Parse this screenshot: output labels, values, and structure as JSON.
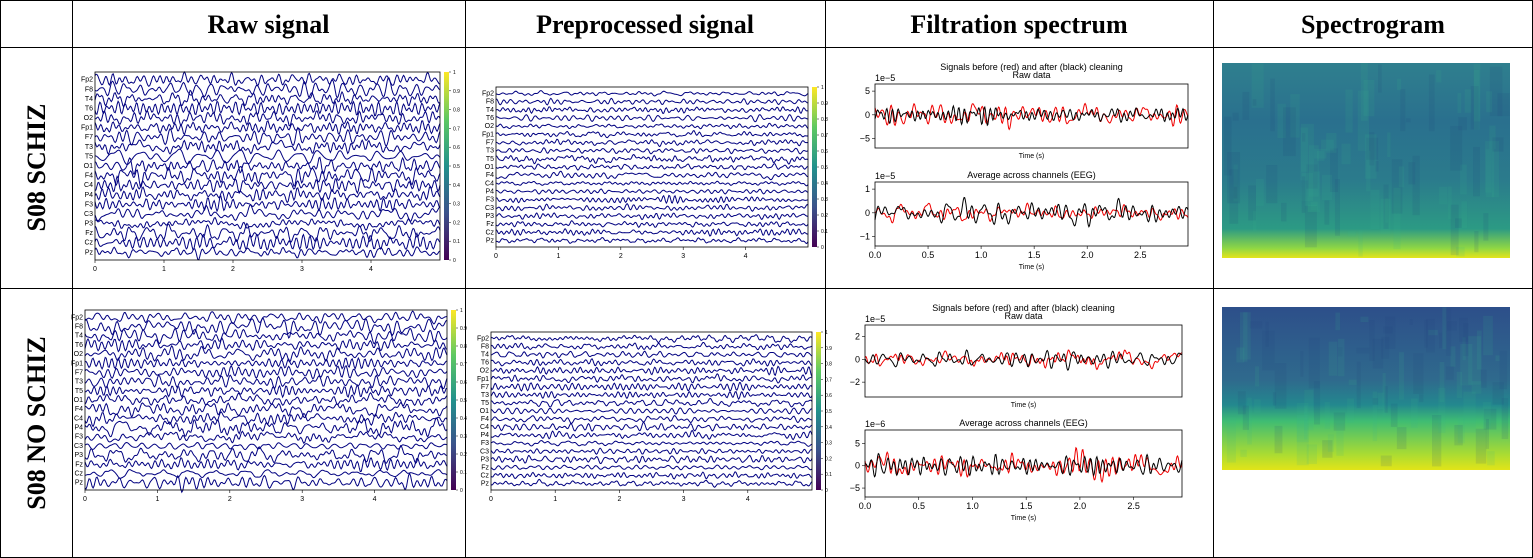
{
  "table": {
    "header": [
      "Raw signal",
      "Preprocessed signal",
      "Filtration spectrum",
      "Spectrogram"
    ],
    "rows": [
      {
        "label": "S08 SCHIZ"
      },
      {
        "label": "S08 NO SCHIZ"
      }
    ]
  },
  "eeg": {
    "channels": [
      "Fp2",
      "F8",
      "T4",
      "T6",
      "O2",
      "Fp1",
      "F7",
      "T3",
      "T5",
      "O1",
      "F4",
      "C4",
      "P4",
      "F3",
      "C3",
      "P3",
      "Fz",
      "Cz",
      "Pz"
    ],
    "xlim": [
      0,
      5
    ],
    "xticks": [
      0,
      1,
      2,
      3,
      4
    ],
    "colorbar_ticks": [
      0,
      0.1,
      0.2,
      0.3,
      0.4,
      0.5,
      0.6,
      0.7,
      0.8,
      0.9,
      1
    ]
  },
  "filtration": {
    "title": "Signals before (red) and after (black) cleaning",
    "raw_title": "Raw data",
    "avg_title": "Average across channels (EEG)",
    "xlabel": "Time (s)",
    "xlim": [
      0,
      2.95
    ],
    "xticks": [
      {
        "value": 0,
        "label": "0.0"
      },
      {
        "value": 0.5,
        "label": "0.5"
      },
      {
        "value": 1,
        "label": "1.0"
      },
      {
        "value": 1.5,
        "label": "1.5"
      },
      {
        "value": 2,
        "label": "2.0"
      },
      {
        "value": 2.5,
        "label": "2.5"
      }
    ],
    "rows": [
      {
        "raw_scale": "1e−5",
        "raw_ylim": [
          -7,
          6.5
        ],
        "raw_yticks": [
          5,
          0,
          {
            "value": -5,
            "label": "−5"
          }
        ],
        "avg_scale": "1e−5",
        "avg_ylim": [
          -1.4,
          1.3
        ],
        "avg_yticks": [
          1,
          0,
          {
            "value": -1,
            "label": "−1"
          }
        ]
      },
      {
        "raw_scale": "1e−5",
        "raw_ylim": [
          -3.3,
          3
        ],
        "raw_yticks": [
          2,
          0,
          {
            "value": -2,
            "label": "−2"
          }
        ],
        "avg_scale": "1e−6",
        "avg_ylim": [
          -7,
          8
        ],
        "avg_yticks": [
          5,
          0,
          {
            "value": -5,
            "label": "−5"
          }
        ]
      }
    ]
  }
}
